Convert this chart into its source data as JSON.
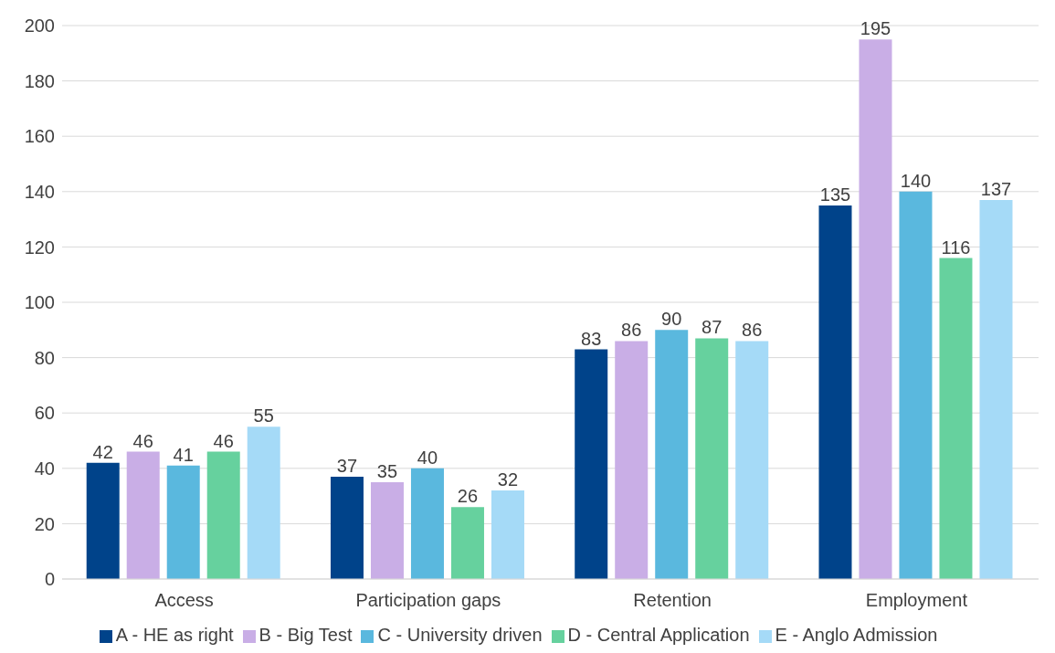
{
  "chart_data": {
    "type": "bar",
    "categories": [
      "Access",
      "Participation gaps",
      "Retention",
      "Employment"
    ],
    "series": [
      {
        "name": "A - HE as right",
        "color": "#00438a",
        "values": [
          42,
          37,
          83,
          135
        ]
      },
      {
        "name": "B - Big Test",
        "color": "#c9aee6",
        "values": [
          46,
          35,
          86,
          195
        ]
      },
      {
        "name": "C - University driven",
        "color": "#5ab8de",
        "values": [
          41,
          40,
          90,
          140
        ]
      },
      {
        "name": "D - Central Application",
        "color": "#66d19e",
        "values": [
          46,
          26,
          87,
          116
        ]
      },
      {
        "name": "E - Anglo Admission",
        "color": "#a5daf7",
        "values": [
          55,
          32,
          86,
          137
        ]
      }
    ],
    "ylim": [
      0,
      200
    ],
    "yticks": [
      0,
      20,
      40,
      60,
      80,
      100,
      120,
      140,
      160,
      180,
      200
    ],
    "grid": "y",
    "legend": "bottom",
    "data_labels": true
  }
}
